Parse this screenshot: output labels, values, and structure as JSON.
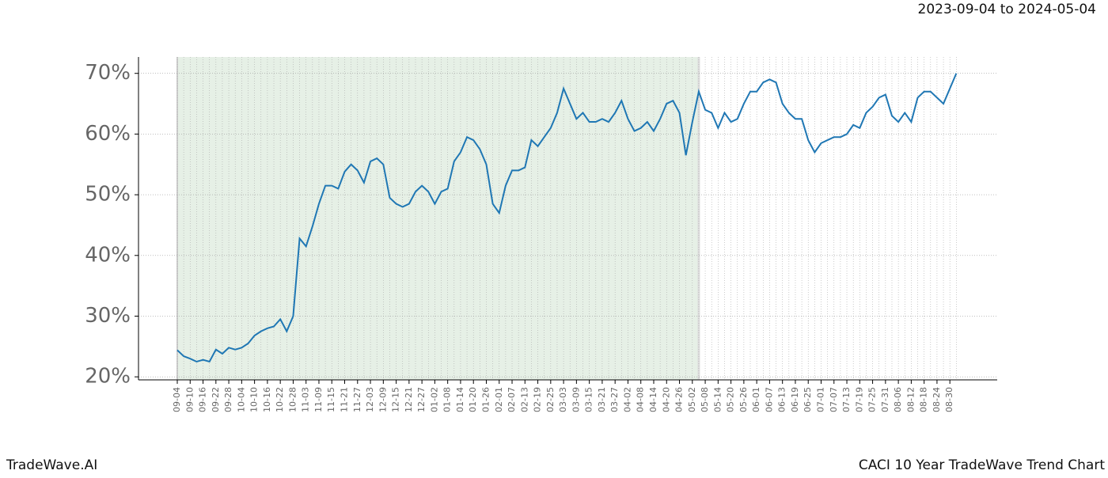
{
  "chart_data": {
    "type": "line",
    "title": "2023-09-04 to 2024-05-04",
    "footer_left": "TradeWave.AI",
    "footer_right": "CACI 10 Year TradeWave Trend Chart",
    "categories": [
      "09-04",
      null,
      "09-10",
      null,
      "09-16",
      null,
      "09-22",
      null,
      "09-28",
      null,
      "10-04",
      null,
      "10-10",
      null,
      "10-16",
      null,
      "10-22",
      null,
      "10-28",
      null,
      "11-03",
      null,
      "11-09",
      null,
      "11-15",
      null,
      "11-21",
      null,
      "11-27",
      null,
      "12-03",
      null,
      "12-09",
      null,
      "12-15",
      null,
      "12-21",
      null,
      "12-27",
      null,
      "01-02",
      null,
      "01-08",
      null,
      "01-14",
      null,
      "01-20",
      null,
      "01-26",
      null,
      "02-01",
      null,
      "02-07",
      null,
      "02-13",
      null,
      "02-19",
      null,
      "02-25",
      null,
      "03-03",
      null,
      "03-09",
      null,
      "03-15",
      null,
      "03-21",
      null,
      "03-27",
      null,
      "04-02",
      null,
      "04-08",
      null,
      "04-14",
      null,
      "04-20",
      null,
      "04-26",
      null,
      "05-02",
      null,
      "05-08",
      null,
      "05-14",
      null,
      "05-20",
      null,
      "05-26",
      null,
      "06-01",
      null,
      "06-07",
      null,
      "06-13",
      null,
      "06-19",
      null,
      "06-25",
      null,
      "07-01",
      null,
      "07-07",
      null,
      "07-13",
      null,
      "07-19",
      null,
      "07-25",
      null,
      "07-31",
      null,
      "08-06",
      null,
      "08-12",
      null,
      "08-18",
      null,
      "08-24",
      null,
      "08-30",
      null
    ],
    "series": [
      {
        "name": "CACI",
        "color": "#1f77b4",
        "values": [
          24.4,
          23.4,
          23.0,
          22.5,
          22.8,
          22.5,
          24.5,
          23.8,
          24.8,
          24.5,
          24.8,
          25.5,
          26.8,
          27.5,
          28.0,
          28.3,
          29.5,
          27.5,
          30.0,
          42.8,
          41.5,
          44.8,
          48.5,
          51.5,
          51.5,
          51.0,
          53.8,
          55.0,
          54.0,
          52.0,
          55.5,
          56.0,
          55.0,
          49.5,
          48.5,
          48.0,
          48.5,
          50.5,
          51.5,
          50.5,
          48.5,
          50.5,
          51.0,
          55.5,
          57.0,
          59.5,
          59.0,
          57.5,
          55.0,
          48.5,
          47.0,
          51.5,
          54.0,
          54.0,
          54.5,
          59.0,
          58.0,
          59.5,
          61.0,
          63.5,
          67.5,
          65.0,
          62.5,
          63.5,
          62.0,
          62.0,
          62.5,
          62.0,
          63.5,
          65.5,
          62.5,
          60.5,
          61.0,
          62.0,
          60.5,
          62.5,
          65.0,
          65.5,
          63.5,
          56.5,
          62.0,
          67.0,
          64.0,
          63.5,
          61.0,
          63.5,
          62.0,
          62.5,
          65.0,
          67.0,
          67.0,
          68.5,
          69.0,
          68.5,
          65.0,
          63.5,
          62.5,
          62.5,
          59.0,
          57.0,
          58.5,
          59.0,
          59.5,
          59.5,
          60.0,
          61.5,
          61.0,
          63.5,
          64.5,
          66.0,
          66.5,
          63.0,
          62.0,
          63.5,
          62.0,
          66.0,
          67.0,
          67.0,
          66.0,
          65.0,
          67.5,
          70.0
        ]
      }
    ],
    "ylim": [
      19.5,
      72.7
    ],
    "yticks": [
      {
        "value": 20,
        "label": "20%"
      },
      {
        "value": 30,
        "label": "30%"
      },
      {
        "value": 40,
        "label": "40%"
      },
      {
        "value": 50,
        "label": "50%"
      },
      {
        "value": 60,
        "label": "60%"
      },
      {
        "value": 70,
        "label": "70%"
      }
    ],
    "grid": true,
    "shaded_span": [
      0,
      81
    ],
    "shade_color": "#e6f0e6"
  }
}
